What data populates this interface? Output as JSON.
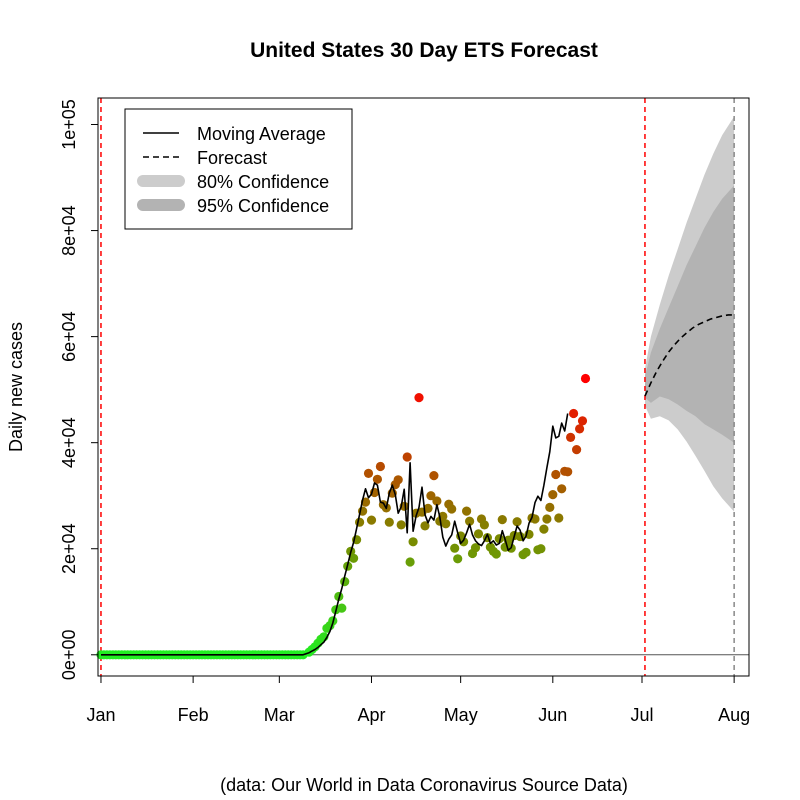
{
  "chart_data": {
    "type": "line",
    "title": "United States 30 Day ETS Forecast",
    "ylabel": "Daily new cases",
    "xlabel": "",
    "caption": "(data: Our World in Data Coronavirus Source Data)",
    "ylim": [
      -4000,
      105000
    ],
    "yticks": [
      0,
      20000,
      40000,
      60000,
      80000,
      100000
    ],
    "ytick_labels": [
      "0e+00",
      "2e+04",
      "4e+04",
      "6e+04",
      "8e+04",
      "1e+05"
    ],
    "x_start": "2019-12-31",
    "x_end": "2020-08-06",
    "xticks": [
      {
        "date": "2020-01-01",
        "label": "Jan"
      },
      {
        "date": "2020-02-01",
        "label": "Feb"
      },
      {
        "date": "2020-03-01",
        "label": "Mar"
      },
      {
        "date": "2020-04-01",
        "label": "Apr"
      },
      {
        "date": "2020-05-01",
        "label": "May"
      },
      {
        "date": "2020-06-01",
        "label": "Jun"
      },
      {
        "date": "2020-07-01",
        "label": "Jul"
      },
      {
        "date": "2020-08-01",
        "label": "Aug"
      }
    ],
    "vlines": [
      {
        "date": "2020-01-01",
        "color": "#ff0000"
      },
      {
        "date": "2020-07-02",
        "color": "#ff0000"
      },
      {
        "date": "2020-08-01",
        "color": "#888888"
      }
    ],
    "hline": 0,
    "grid": false,
    "legend": {
      "position": "top-left",
      "entries": [
        {
          "label": "Moving Average",
          "style": "solid"
        },
        {
          "label": "Forecast",
          "style": "dashed"
        },
        {
          "label": "80% Confidence",
          "style": "band",
          "color": "#cccccc"
        },
        {
          "label": "95% Confidence",
          "style": "band",
          "color": "#b3b3b3"
        }
      ]
    },
    "points": [
      [
        "2020-03-11",
        500
      ],
      [
        "2020-03-12",
        1000
      ],
      [
        "2020-03-13",
        1500
      ],
      [
        "2020-03-14",
        2200
      ],
      [
        "2020-03-15",
        2900
      ],
      [
        "2020-03-16",
        3400
      ],
      [
        "2020-03-17",
        5000
      ],
      [
        "2020-03-18",
        5500
      ],
      [
        "2020-03-19",
        6400
      ],
      [
        "2020-03-20",
        8500
      ],
      [
        "2020-03-21",
        11000
      ],
      [
        "2020-03-22",
        8800
      ],
      [
        "2020-03-23",
        13800
      ],
      [
        "2020-03-24",
        16700
      ],
      [
        "2020-03-25",
        19500
      ],
      [
        "2020-03-26",
        18200
      ],
      [
        "2020-03-27",
        21700
      ],
      [
        "2020-03-28",
        25000
      ],
      [
        "2020-03-29",
        27100
      ],
      [
        "2020-03-30",
        28800
      ],
      [
        "2020-03-31",
        34200
      ],
      [
        "2020-04-01",
        25400
      ],
      [
        "2020-04-02",
        30600
      ],
      [
        "2020-04-03",
        33100
      ],
      [
        "2020-04-04",
        35500
      ],
      [
        "2020-04-05",
        28300
      ],
      [
        "2020-04-06",
        27700
      ],
      [
        "2020-04-07",
        25000
      ],
      [
        "2020-04-08",
        30500
      ],
      [
        "2020-04-09",
        32100
      ],
      [
        "2020-04-10",
        33000
      ],
      [
        "2020-04-11",
        24500
      ],
      [
        "2020-04-12",
        28000
      ],
      [
        "2020-04-13",
        37300
      ],
      [
        "2020-04-14",
        17500
      ],
      [
        "2020-04-15",
        21300
      ],
      [
        "2020-04-16",
        26700
      ],
      [
        "2020-04-17",
        48500
      ],
      [
        "2020-04-18",
        26900
      ],
      [
        "2020-04-19",
        24300
      ],
      [
        "2020-04-20",
        27600
      ],
      [
        "2020-04-21",
        30000
      ],
      [
        "2020-04-22",
        33800
      ],
      [
        "2020-04-23",
        29000
      ],
      [
        "2020-04-24",
        25200
      ],
      [
        "2020-04-25",
        26100
      ],
      [
        "2020-04-26",
        24700
      ],
      [
        "2020-04-27",
        28400
      ],
      [
        "2020-04-28",
        27500
      ],
      [
        "2020-04-29",
        20100
      ],
      [
        "2020-04-30",
        18100
      ],
      [
        "2020-05-01",
        22400
      ],
      [
        "2020-05-02",
        21300
      ],
      [
        "2020-05-03",
        27100
      ],
      [
        "2020-05-04",
        25200
      ],
      [
        "2020-05-05",
        19100
      ],
      [
        "2020-05-06",
        20200
      ],
      [
        "2020-05-07",
        22800
      ],
      [
        "2020-05-08",
        25600
      ],
      [
        "2020-05-09",
        24500
      ],
      [
        "2020-05-10",
        22100
      ],
      [
        "2020-05-11",
        20300
      ],
      [
        "2020-05-12",
        19500
      ],
      [
        "2020-05-13",
        19000
      ],
      [
        "2020-05-14",
        21900
      ],
      [
        "2020-05-15",
        25500
      ],
      [
        "2020-05-16",
        20300
      ],
      [
        "2020-05-17",
        21600
      ],
      [
        "2020-05-18",
        20100
      ],
      [
        "2020-05-19",
        22500
      ],
      [
        "2020-05-20",
        25100
      ],
      [
        "2020-05-21",
        22300
      ],
      [
        "2020-05-22",
        18900
      ],
      [
        "2020-05-23",
        19300
      ],
      [
        "2020-05-24",
        22700
      ],
      [
        "2020-05-25",
        25800
      ],
      [
        "2020-05-26",
        25600
      ],
      [
        "2020-05-27",
        19800
      ],
      [
        "2020-05-28",
        20000
      ],
      [
        "2020-05-29",
        23700
      ],
      [
        "2020-05-30",
        25600
      ],
      [
        "2020-05-31",
        27800
      ],
      [
        "2020-06-01",
        30200
      ],
      [
        "2020-06-02",
        34000
      ],
      [
        "2020-06-03",
        25800
      ],
      [
        "2020-06-04",
        31300
      ],
      [
        "2020-06-05",
        34600
      ],
      [
        "2020-06-06",
        34500
      ],
      [
        "2020-06-07",
        41000
      ],
      [
        "2020-06-08",
        45500
      ],
      [
        "2020-06-09",
        38700
      ],
      [
        "2020-06-10",
        42600
      ],
      [
        "2020-06-11",
        44100
      ],
      [
        "2020-06-12",
        52100
      ]
    ],
    "moving_average": [
      [
        "2020-03-09",
        0
      ],
      [
        "2020-03-10",
        200
      ],
      [
        "2020-03-11",
        400
      ],
      [
        "2020-03-12",
        700
      ],
      [
        "2020-03-13",
        1000
      ],
      [
        "2020-03-14",
        1400
      ],
      [
        "2020-03-15",
        1900
      ],
      [
        "2020-03-16",
        2400
      ],
      [
        "2020-03-17",
        3300
      ],
      [
        "2020-03-18",
        4400
      ],
      [
        "2020-03-19",
        6000
      ],
      [
        "2020-03-20",
        8200
      ],
      [
        "2020-03-21",
        10500
      ],
      [
        "2020-03-22",
        12500
      ],
      [
        "2020-03-23",
        14800
      ],
      [
        "2020-03-24",
        17000
      ],
      [
        "2020-03-25",
        19300
      ],
      [
        "2020-03-26",
        21200
      ],
      [
        "2020-03-27",
        23800
      ],
      [
        "2020-03-28",
        26500
      ],
      [
        "2020-03-29",
        29200
      ],
      [
        "2020-03-30",
        31300
      ],
      [
        "2020-03-31",
        29600
      ],
      [
        "2020-04-01",
        30300
      ],
      [
        "2020-04-02",
        32400
      ],
      [
        "2020-04-03",
        32000
      ],
      [
        "2020-04-04",
        28800
      ],
      [
        "2020-04-05",
        28600
      ],
      [
        "2020-04-06",
        27600
      ],
      [
        "2020-04-07",
        30500
      ],
      [
        "2020-04-08",
        32000
      ],
      [
        "2020-04-09",
        30200
      ],
      [
        "2020-04-10",
        26700
      ],
      [
        "2020-04-11",
        27900
      ],
      [
        "2020-04-12",
        31200
      ],
      [
        "2020-04-13",
        23000
      ],
      [
        "2020-04-14",
        36200
      ],
      [
        "2020-04-15",
        23300
      ],
      [
        "2020-04-16",
        26200
      ],
      [
        "2020-04-17",
        27800
      ],
      [
        "2020-04-18",
        31600
      ],
      [
        "2020-04-19",
        26400
      ],
      [
        "2020-04-20",
        24900
      ],
      [
        "2020-04-21",
        26100
      ],
      [
        "2020-04-22",
        25400
      ],
      [
        "2020-04-23",
        28300
      ],
      [
        "2020-04-24",
        26000
      ],
      [
        "2020-04-25",
        22200
      ],
      [
        "2020-04-26",
        20500
      ],
      [
        "2020-04-27",
        21800
      ],
      [
        "2020-04-28",
        22600
      ],
      [
        "2020-04-29",
        25200
      ],
      [
        "2020-04-30",
        23000
      ],
      [
        "2020-05-01",
        21000
      ],
      [
        "2020-05-02",
        21600
      ],
      [
        "2020-05-03",
        23000
      ],
      [
        "2020-05-04",
        24600
      ],
      [
        "2020-05-05",
        22600
      ],
      [
        "2020-05-06",
        21500
      ],
      [
        "2020-05-07",
        20900
      ],
      [
        "2020-05-08",
        20600
      ],
      [
        "2020-05-09",
        21500
      ],
      [
        "2020-05-10",
        22700
      ],
      [
        "2020-05-11",
        21000
      ],
      [
        "2020-05-12",
        21500
      ],
      [
        "2020-05-13",
        20700
      ],
      [
        "2020-05-14",
        21000
      ],
      [
        "2020-05-15",
        23400
      ],
      [
        "2020-05-16",
        21700
      ],
      [
        "2020-05-17",
        19700
      ],
      [
        "2020-05-18",
        20200
      ],
      [
        "2020-05-19",
        22300
      ],
      [
        "2020-05-20",
        24300
      ],
      [
        "2020-05-21",
        23500
      ],
      [
        "2020-05-22",
        21500
      ],
      [
        "2020-05-23",
        22400
      ],
      [
        "2020-05-24",
        24800
      ],
      [
        "2020-05-25",
        25900
      ],
      [
        "2020-05-26",
        28700
      ],
      [
        "2020-05-27",
        29900
      ],
      [
        "2020-05-28",
        29100
      ],
      [
        "2020-05-29",
        32000
      ],
      [
        "2020-05-30",
        35300
      ],
      [
        "2020-05-31",
        38300
      ],
      [
        "2020-06-01",
        43100
      ],
      [
        "2020-06-02",
        40900
      ],
      [
        "2020-06-03",
        41200
      ],
      [
        "2020-06-04",
        43700
      ],
      [
        "2020-06-05",
        42200
      ],
      [
        "2020-06-06",
        45500
      ]
    ],
    "ma_baseline": {
      "from": "2020-01-01",
      "to": "2020-03-09",
      "value": 0
    },
    "early_points": {
      "from": "2020-01-01",
      "to": "2020-03-09",
      "value": 0
    },
    "forecast": [
      [
        "2020-07-02",
        48800
      ],
      [
        "2020-07-04",
        51300
      ],
      [
        "2020-07-06",
        53500
      ],
      [
        "2020-07-08",
        55400
      ],
      [
        "2020-07-10",
        57100
      ],
      [
        "2020-07-12",
        58500
      ],
      [
        "2020-07-14",
        59700
      ],
      [
        "2020-07-16",
        60700
      ],
      [
        "2020-07-18",
        61600
      ],
      [
        "2020-07-20",
        62300
      ],
      [
        "2020-07-22",
        62800
      ],
      [
        "2020-07-24",
        63300
      ],
      [
        "2020-07-26",
        63600
      ],
      [
        "2020-07-28",
        63900
      ],
      [
        "2020-07-30",
        64100
      ],
      [
        "2020-08-01",
        64100
      ]
    ],
    "band95": {
      "x": [
        "2020-07-02",
        "2020-07-04",
        "2020-07-07",
        "2020-07-10",
        "2020-07-13",
        "2020-07-16",
        "2020-07-19",
        "2020-07-22",
        "2020-07-25",
        "2020-07-28",
        "2020-08-01"
      ],
      "upper": [
        54000,
        60000,
        66000,
        71500,
        76500,
        81500,
        86000,
        90500,
        94500,
        98000,
        101500
      ],
      "lower": [
        47000,
        44500,
        45000,
        44200,
        42500,
        40200,
        37500,
        34700,
        31800,
        29500,
        27000
      ]
    },
    "band80": {
      "x": [
        "2020-07-02",
        "2020-07-04",
        "2020-07-07",
        "2020-07-10",
        "2020-07-13",
        "2020-07-16",
        "2020-07-19",
        "2020-07-22",
        "2020-07-25",
        "2020-07-28",
        "2020-08-01"
      ],
      "upper": [
        52500,
        57000,
        61500,
        65500,
        69500,
        73500,
        77000,
        80500,
        83500,
        86000,
        88500
      ],
      "lower": [
        48500,
        47500,
        48700,
        48200,
        47200,
        46000,
        45000,
        43500,
        42500,
        41500,
        40000
      ]
    },
    "colors": {
      "axis": "#000000",
      "vline_red": "#ff0000",
      "vline_gray": "#888888",
      "band80": "#cccccc",
      "band95": "#b3b3b3",
      "low": "#22ee22",
      "mid": "#7a8a00",
      "high": "#ff0000"
    }
  }
}
